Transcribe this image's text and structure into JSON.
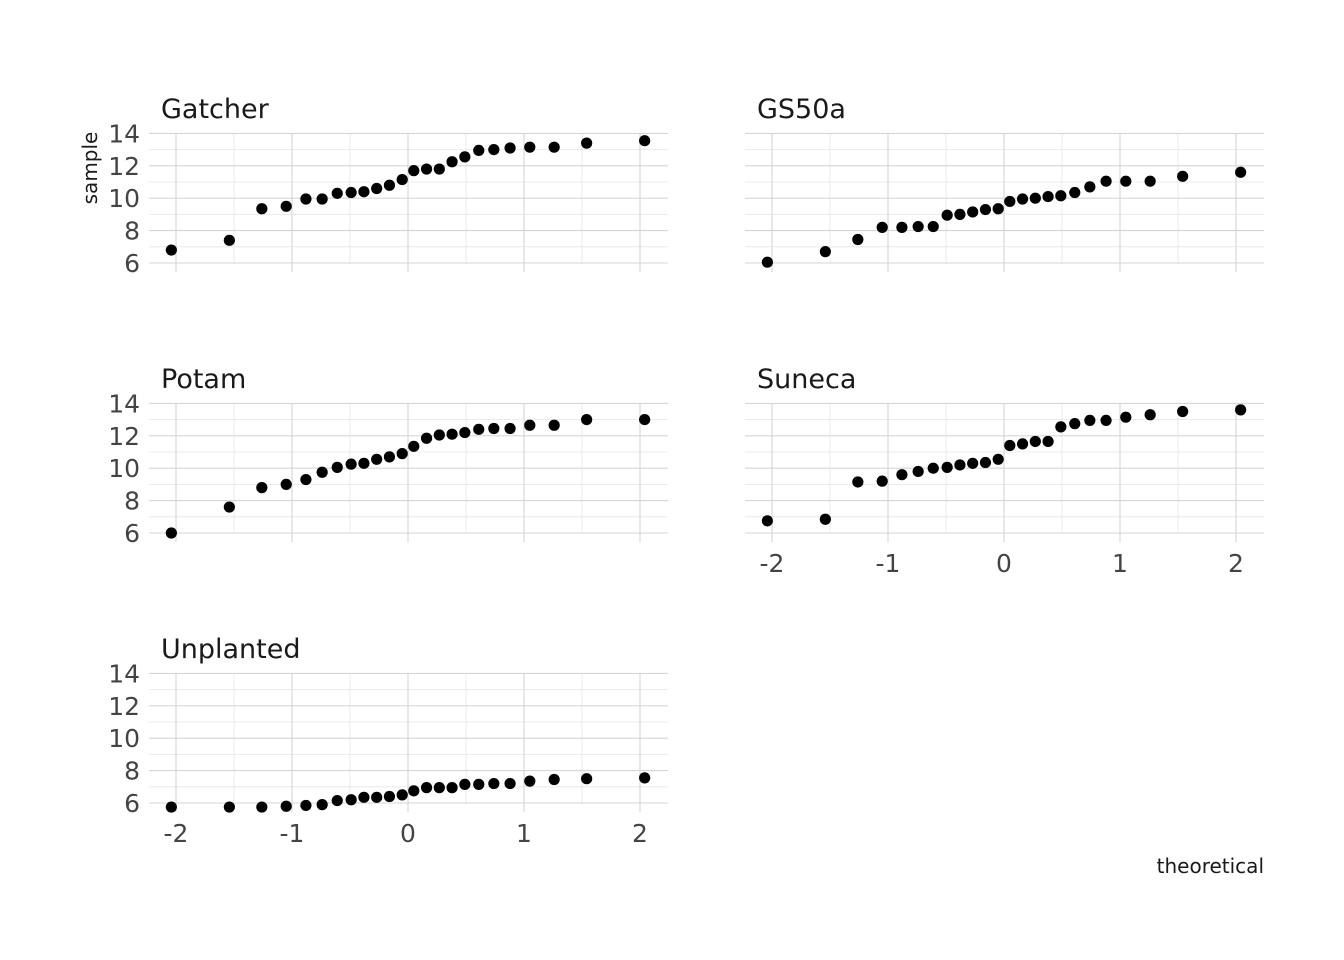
{
  "chart_data": {
    "type": "scatter",
    "xlabel": "theoretical",
    "ylabel": "sample",
    "x_ticks": [
      -2,
      -1,
      0,
      1,
      2
    ],
    "y_ticks": [
      6,
      8,
      10,
      12,
      14
    ],
    "xlim": [
      -2.15,
      2.15
    ],
    "ylim": [
      5.8,
      14.2
    ],
    "point_color": "#000000",
    "grid": true,
    "panels": [
      {
        "name": "Gatcher",
        "x": [
          -2.04,
          -1.54,
          -1.26,
          -1.05,
          -0.88,
          -0.74,
          -0.61,
          -0.49,
          -0.38,
          -0.27,
          -0.16,
          -0.05,
          0.05,
          0.16,
          0.27,
          0.38,
          0.49,
          0.61,
          0.74,
          0.88,
          1.05,
          1.26,
          1.54,
          2.04
        ],
        "y": [
          6.8,
          7.4,
          9.35,
          9.5,
          9.95,
          9.95,
          10.3,
          10.35,
          10.4,
          10.6,
          10.8,
          11.15,
          11.7,
          11.8,
          11.8,
          12.25,
          12.55,
          12.95,
          13.0,
          13.1,
          13.15,
          13.15,
          13.4,
          13.55
        ]
      },
      {
        "name": "GS50a",
        "x": [
          -2.04,
          -1.54,
          -1.26,
          -1.05,
          -0.88,
          -0.74,
          -0.61,
          -0.49,
          -0.38,
          -0.27,
          -0.16,
          -0.05,
          0.05,
          0.16,
          0.27,
          0.38,
          0.49,
          0.61,
          0.74,
          0.88,
          1.05,
          1.26,
          1.54,
          2.04
        ],
        "y": [
          6.05,
          6.7,
          7.45,
          8.2,
          8.2,
          8.25,
          8.25,
          8.95,
          9.0,
          9.15,
          9.3,
          9.35,
          9.8,
          9.95,
          10.0,
          10.1,
          10.15,
          10.35,
          10.7,
          11.05,
          11.05,
          11.05,
          11.35,
          11.6
        ]
      },
      {
        "name": "Potam",
        "x": [
          -2.04,
          -1.54,
          -1.26,
          -1.05,
          -0.88,
          -0.74,
          -0.61,
          -0.49,
          -0.38,
          -0.27,
          -0.16,
          -0.05,
          0.05,
          0.16,
          0.27,
          0.38,
          0.49,
          0.61,
          0.74,
          0.88,
          1.05,
          1.26,
          1.54,
          2.04
        ],
        "y": [
          6.0,
          7.6,
          8.8,
          9.0,
          9.3,
          9.75,
          10.05,
          10.25,
          10.3,
          10.55,
          10.7,
          10.9,
          11.35,
          11.85,
          12.05,
          12.1,
          12.2,
          12.4,
          12.45,
          12.45,
          12.65,
          12.65,
          13.0,
          13.0
        ]
      },
      {
        "name": "Suneca",
        "x": [
          -2.04,
          -1.54,
          -1.26,
          -1.05,
          -0.88,
          -0.74,
          -0.61,
          -0.49,
          -0.38,
          -0.27,
          -0.16,
          -0.05,
          0.05,
          0.16,
          0.27,
          0.38,
          0.49,
          0.61,
          0.74,
          0.88,
          1.05,
          1.26,
          1.54,
          2.04
        ],
        "y": [
          6.75,
          6.85,
          9.15,
          9.2,
          9.6,
          9.8,
          10.0,
          10.05,
          10.2,
          10.3,
          10.35,
          10.55,
          11.4,
          11.5,
          11.65,
          11.65,
          12.55,
          12.75,
          12.95,
          12.95,
          13.15,
          13.3,
          13.5,
          13.6
        ]
      },
      {
        "name": "Unplanted",
        "x": [
          -2.04,
          -1.54,
          -1.26,
          -1.05,
          -0.88,
          -0.74,
          -0.61,
          -0.49,
          -0.38,
          -0.27,
          -0.16,
          -0.05,
          0.05,
          0.16,
          0.27,
          0.38,
          0.49,
          0.61,
          0.74,
          0.88,
          1.05,
          1.26,
          1.54,
          2.04
        ],
        "y": [
          5.75,
          5.75,
          5.75,
          5.8,
          5.85,
          5.9,
          6.15,
          6.2,
          6.35,
          6.35,
          6.4,
          6.5,
          6.75,
          6.95,
          6.95,
          6.95,
          7.15,
          7.15,
          7.2,
          7.2,
          7.35,
          7.45,
          7.5,
          7.55
        ]
      }
    ]
  }
}
